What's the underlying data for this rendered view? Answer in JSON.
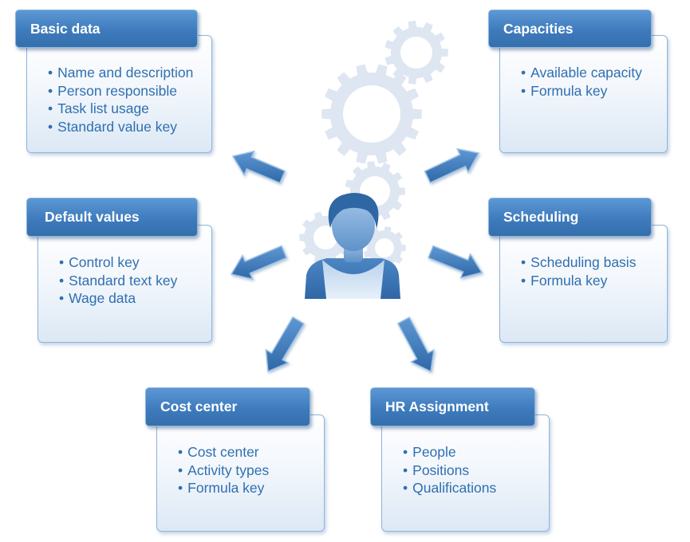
{
  "colors": {
    "header": "#3e7bbd",
    "bullet_text": "#2f6fb0",
    "card_border": "#8fb4d8",
    "gear": "#dde6f1",
    "arrow": "#3d79ba"
  },
  "center": {
    "icon": "person-icon"
  },
  "boxes": [
    {
      "id": "basic-data",
      "title": "Basic data",
      "items": [
        "Name and description",
        "Person responsible",
        "Task list usage",
        "Standard value key"
      ]
    },
    {
      "id": "capacities",
      "title": "Capacities",
      "items": [
        "Available capacity",
        "Formula key"
      ]
    },
    {
      "id": "default-values",
      "title": "Default values",
      "items": [
        "Control key",
        "Standard text key",
        "Wage data"
      ]
    },
    {
      "id": "scheduling",
      "title": "Scheduling",
      "items": [
        "Scheduling basis",
        "Formula key"
      ]
    },
    {
      "id": "cost-center",
      "title": "Cost center",
      "items": [
        "Cost center",
        "Activity types",
        "Formula key"
      ]
    },
    {
      "id": "hr-assignment",
      "title": "HR Assignment",
      "items": [
        "People",
        "Positions",
        "Qualifications"
      ]
    }
  ]
}
